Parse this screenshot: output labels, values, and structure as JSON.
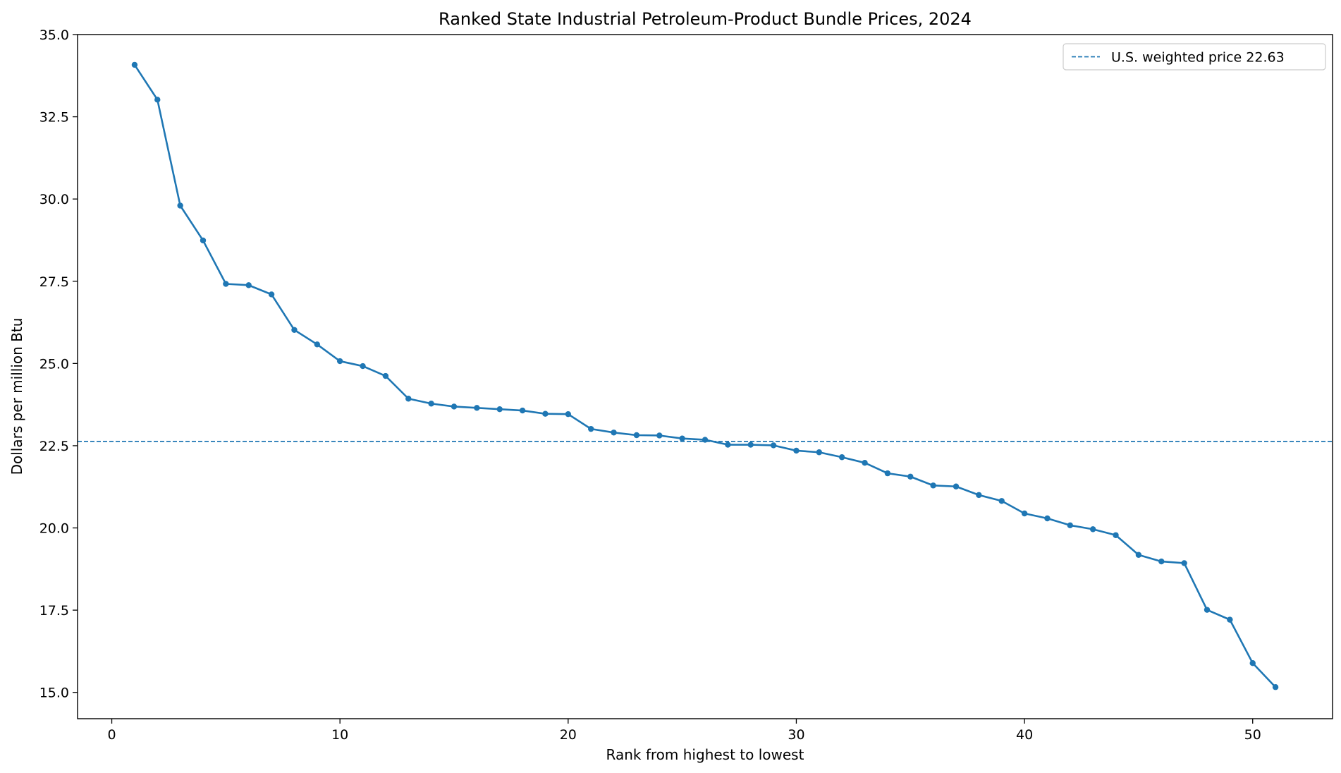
{
  "chart_data": {
    "type": "line",
    "title": "Ranked State Industrial Petroleum-Product Bundle Prices, 2024",
    "xlabel": "Rank from highest to lowest",
    "ylabel": "Dollars per million Btu",
    "xlim": [
      -1.5,
      53.5
    ],
    "ylim": [
      14.2,
      35.0
    ],
    "xticks": [
      0,
      10,
      20,
      30,
      40,
      50
    ],
    "xtick_labels": [
      "0",
      "10",
      "20",
      "30",
      "40",
      "50"
    ],
    "yticks": [
      15.0,
      17.5,
      20.0,
      22.5,
      25.0,
      27.5,
      30.0,
      32.5,
      35.0
    ],
    "ytick_labels": [
      "15.0",
      "17.5",
      "20.0",
      "22.5",
      "25.0",
      "27.5",
      "30.0",
      "32.5",
      "35.0"
    ],
    "grid": false,
    "legend_position": "top-right",
    "series": [
      {
        "color": "#1f77b4",
        "marker": "circle",
        "x": [
          1,
          2,
          3,
          4,
          5,
          6,
          7,
          8,
          9,
          10,
          11,
          12,
          13,
          14,
          15,
          16,
          17,
          18,
          19,
          20,
          21,
          22,
          23,
          24,
          25,
          26,
          27,
          28,
          29,
          30,
          31,
          32,
          33,
          34,
          35,
          36,
          37,
          38,
          39,
          40,
          41,
          42,
          43,
          44,
          45,
          46,
          47,
          48,
          49,
          50,
          51
        ],
        "y": [
          34.08,
          33.02,
          29.8,
          28.74,
          27.42,
          27.38,
          27.1,
          26.02,
          25.58,
          25.07,
          24.92,
          24.62,
          23.93,
          23.78,
          23.69,
          23.65,
          23.61,
          23.57,
          23.47,
          23.46,
          23.01,
          22.9,
          22.82,
          22.81,
          22.72,
          22.68,
          22.53,
          22.53,
          22.51,
          22.35,
          22.3,
          22.15,
          21.98,
          21.66,
          21.56,
          21.29,
          21.26,
          21.0,
          20.82,
          20.44,
          20.29,
          20.08,
          19.96,
          19.78,
          19.18,
          18.98,
          18.93,
          17.51,
          17.21,
          15.89,
          15.16
        ]
      }
    ],
    "reference_lines": [
      {
        "orientation": "horizontal",
        "value": 22.63,
        "style": "dashed",
        "color": "#1f77b4",
        "label": "U.S. weighted price 22.63"
      }
    ]
  }
}
